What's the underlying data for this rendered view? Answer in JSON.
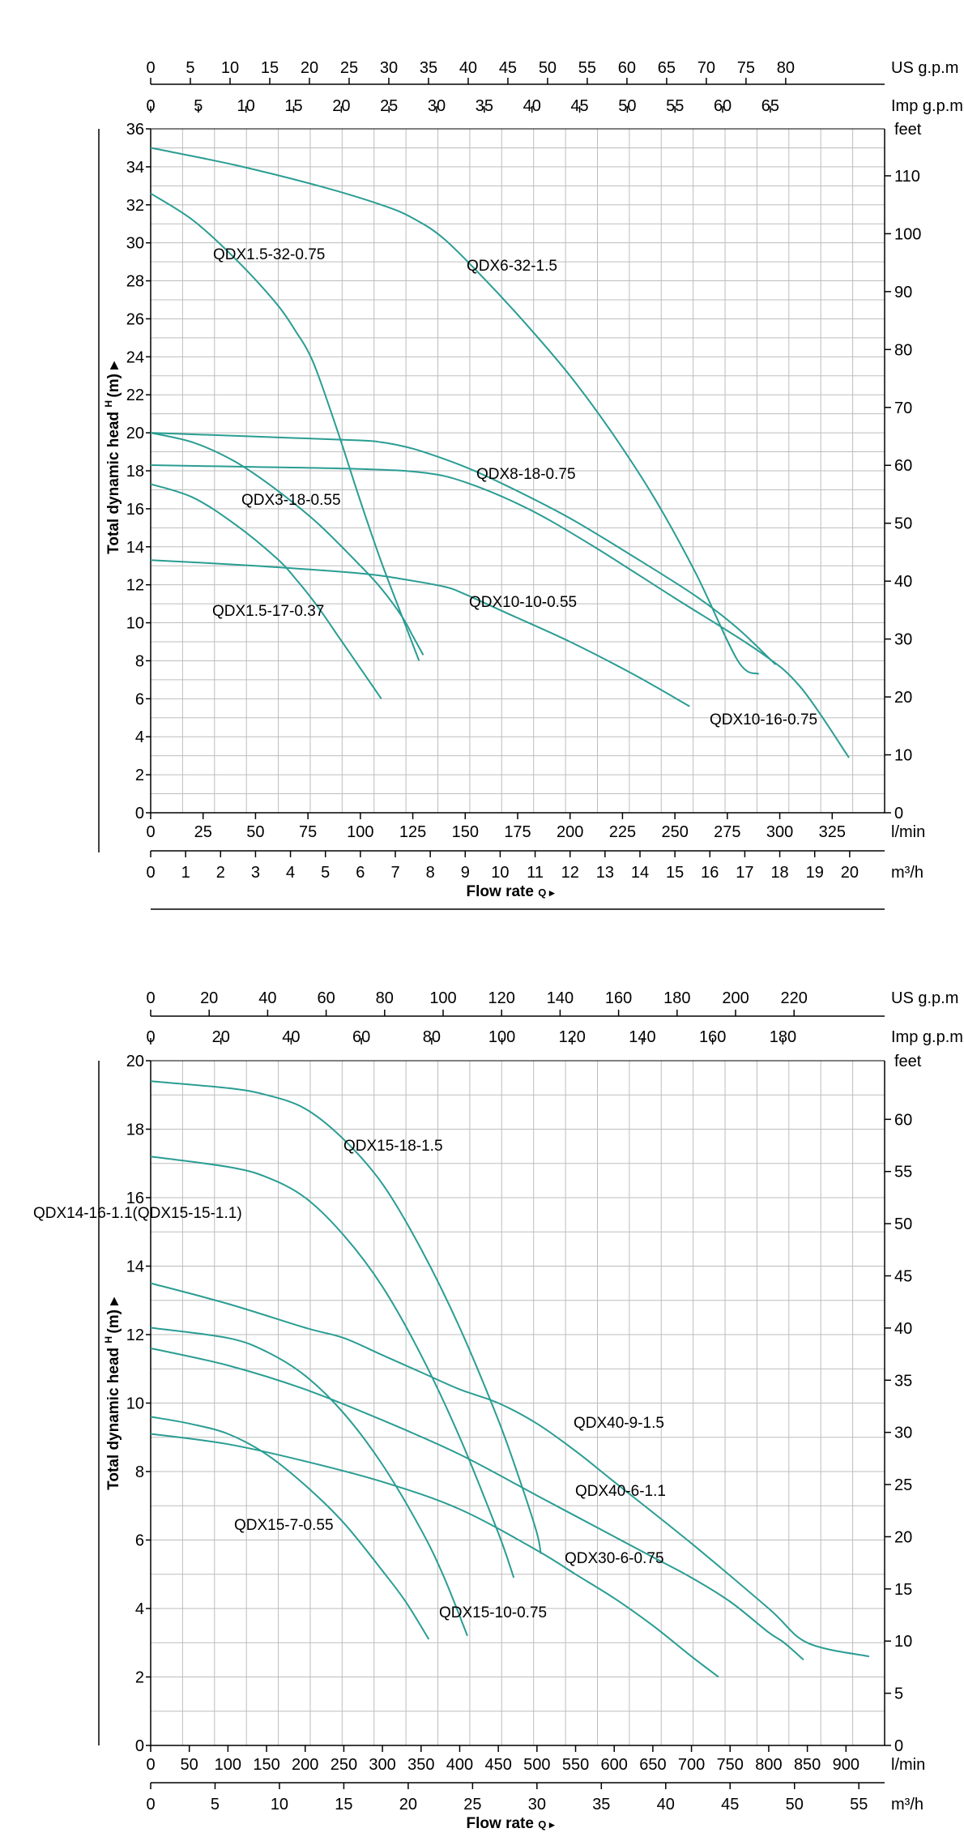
{
  "chart_data": [
    {
      "type": "line",
      "units": {
        "top1": "US g.p.m",
        "top2": "Imp g.p.m",
        "right": "feet",
        "bottom1": "l/min",
        "bottom2": "m³/h"
      },
      "ylabel": "Total dynamic head",
      "ylabel_sub": "H",
      "ylabel_unit": "(m)",
      "xlabel": "Flow rate",
      "xlabel_sub": "Q",
      "xlim": [
        0,
        350
      ],
      "ylim": [
        0,
        36
      ],
      "grid": true,
      "ticks": {
        "left": [
          "0",
          "2",
          "4",
          "6",
          "8",
          "10",
          "12",
          "14",
          "16",
          "18",
          "20",
          "22",
          "24",
          "26",
          "28",
          "30",
          "32",
          "34",
          "36"
        ],
        "right": [
          "0",
          "10",
          "20",
          "30",
          "40",
          "50",
          "60",
          "70",
          "80",
          "90",
          "100",
          "110"
        ],
        "bottom_lmin": [
          "0",
          "25",
          "50",
          "75",
          "100",
          "125",
          "150",
          "175",
          "200",
          "225",
          "250",
          "275",
          "300",
          "325"
        ],
        "bottom_m3h": [
          "0",
          "1",
          "2",
          "3",
          "4",
          "5",
          "6",
          "7",
          "8",
          "9",
          "10",
          "11",
          "12",
          "13",
          "14",
          "15",
          "16",
          "17",
          "18",
          "19",
          "20"
        ],
        "top_usgpm": [
          "0",
          "5",
          "10",
          "15",
          "20",
          "25",
          "30",
          "35",
          "40",
          "45",
          "50",
          "55",
          "60",
          "65",
          "70",
          "75",
          "80"
        ],
        "top_impgpm": [
          "0",
          "5",
          "10",
          "15",
          "20",
          "25",
          "30",
          "35",
          "40",
          "45",
          "50",
          "55",
          "60",
          "65"
        ]
      },
      "series": [
        {
          "name": "QDX1.5-32-0.75",
          "x": [
            0,
            20,
            40,
            60,
            70,
            75,
            80,
            90,
            100,
            110,
            120,
            128
          ],
          "y": [
            32.6,
            31.2,
            29.2,
            26.8,
            25.2,
            24.3,
            23.0,
            19.8,
            16.4,
            13.2,
            10.3,
            8.0
          ]
        },
        {
          "name": "QDX6-32-1.5",
          "x": [
            0,
            40,
            80,
            110,
            125,
            140,
            160,
            180,
            200,
            220,
            240,
            260,
            280,
            290
          ],
          "y": [
            35,
            34.1,
            33.0,
            32.0,
            31.3,
            30.2,
            28.0,
            25.6,
            23.0,
            20.0,
            16.6,
            12.6,
            8.0,
            7.3
          ]
        },
        {
          "name": "QDX8-18-0.75",
          "x": [
            0,
            50,
            100,
            110,
            120,
            130,
            150,
            170,
            200,
            230,
            260,
            280,
            298
          ],
          "y": [
            20.0,
            19.8,
            19.6,
            19.5,
            19.3,
            19.0,
            18.2,
            17.2,
            15.5,
            13.5,
            11.4,
            9.7,
            7.8
          ]
        },
        {
          "name": "QDX3-18-0.55",
          "x": [
            0,
            20,
            40,
            60,
            80,
            100,
            110,
            120,
            125,
            130
          ],
          "y": [
            20.0,
            19.5,
            18.5,
            17.0,
            15.2,
            13.0,
            11.8,
            10.3,
            9.3,
            8.3
          ]
        },
        {
          "name": "QDX1.5-17-0.37",
          "x": [
            0,
            20,
            40,
            60,
            70,
            80,
            90,
            100,
            110
          ],
          "y": [
            17.3,
            16.6,
            15.2,
            13.4,
            12.2,
            10.8,
            9.2,
            7.6,
            6.0
          ]
        },
        {
          "name": "QDX10-10-0.55",
          "x": [
            0,
            50,
            100,
            120,
            140,
            150,
            170,
            200,
            230,
            257
          ],
          "y": [
            13.3,
            13.0,
            12.6,
            12.3,
            11.9,
            11.5,
            10.5,
            9.0,
            7.3,
            5.6
          ]
        },
        {
          "name": "QDX10-16-0.75",
          "x": [
            0,
            50,
            100,
            130,
            150,
            180,
            210,
            250,
            290,
            310,
            333
          ],
          "y": [
            18.3,
            18.2,
            18.1,
            17.9,
            17.4,
            16.0,
            14.1,
            11.3,
            8.5,
            6.6,
            2.9
          ]
        }
      ]
    },
    {
      "type": "line",
      "units": {
        "top1": "US g.p.m",
        "top2": "Imp g.p.m",
        "right": "feet",
        "bottom1": "l/min",
        "bottom2": "m³/h"
      },
      "ylabel": "Total dynamic head",
      "ylabel_sub": "H",
      "ylabel_unit": "(m)",
      "xlabel": "Flow rate",
      "xlabel_sub": "Q",
      "xlim": [
        0,
        950
      ],
      "ylim": [
        0,
        20
      ],
      "grid": true,
      "ticks": {
        "left": [
          "0",
          "2",
          "4",
          "6",
          "8",
          "10",
          "12",
          "14",
          "16",
          "18",
          "20"
        ],
        "right": [
          "0",
          "5",
          "10",
          "15",
          "20",
          "25",
          "30",
          "35",
          "40",
          "45",
          "50",
          "55",
          "60"
        ],
        "bottom_lmin": [
          "0",
          "50",
          "100",
          "150",
          "200",
          "250",
          "300",
          "350",
          "400",
          "450",
          "500",
          "550",
          "600",
          "650",
          "700",
          "750",
          "800",
          "850",
          "900"
        ],
        "bottom_m3h": [
          "0",
          "5",
          "10",
          "15",
          "20",
          "25",
          "30",
          "35",
          "40",
          "45",
          "50",
          "55"
        ],
        "top_usgpm": [
          "0",
          "20",
          "40",
          "60",
          "80",
          "100",
          "120",
          "140",
          "160",
          "180",
          "200",
          "220"
        ],
        "top_impgpm": [
          "0",
          "20",
          "40",
          "60",
          "80",
          "100",
          "120",
          "140",
          "160",
          "180"
        ]
      },
      "series": [
        {
          "name": "QDX15-18-1.5",
          "x": [
            0,
            100,
            150,
            200,
            250,
            300,
            350,
            400,
            450,
            480,
            500,
            505
          ],
          "y": [
            19.4,
            19.2,
            19.0,
            18.6,
            17.7,
            16.4,
            14.5,
            12.2,
            9.5,
            7.6,
            6.2,
            5.6
          ]
        },
        {
          "name": "QDX14-16-1.1(QDX15-15-1.1)",
          "x": [
            0,
            100,
            150,
            200,
            250,
            300,
            350,
            400,
            450,
            470
          ],
          "y": [
            17.2,
            16.9,
            16.6,
            16.0,
            14.9,
            13.4,
            11.4,
            9.0,
            6.2,
            4.9
          ]
        },
        {
          "name": "QDX40-9-1.5",
          "x": [
            0,
            100,
            200,
            250,
            300,
            350,
            400,
            450,
            500,
            550,
            600,
            700,
            800,
            850,
            930
          ],
          "y": [
            13.5,
            12.9,
            12.2,
            11.9,
            11.4,
            10.9,
            10.4,
            10.0,
            9.4,
            8.6,
            7.7,
            5.9,
            4.0,
            3.0,
            2.6
          ]
        },
        {
          "name": "QDX40-6-1.1",
          "x": [
            0,
            100,
            200,
            300,
            400,
            500,
            600,
            650,
            700,
            750,
            800,
            820,
            845
          ],
          "y": [
            11.6,
            11.1,
            10.4,
            9.5,
            8.5,
            7.3,
            6.1,
            5.5,
            4.9,
            4.2,
            3.3,
            3.0,
            2.5
          ]
        },
        {
          "name": "QDX30-6-0.75",
          "x": [
            0,
            100,
            200,
            300,
            400,
            500,
            550,
            600,
            650,
            700,
            735
          ],
          "y": [
            9.1,
            8.8,
            8.3,
            7.7,
            6.9,
            5.7,
            5.0,
            4.3,
            3.5,
            2.6,
            2.0
          ]
        },
        {
          "name": "QDX15-10-0.75",
          "x": [
            0,
            100,
            150,
            200,
            250,
            300,
            350,
            380,
            410
          ],
          "y": [
            12.2,
            11.9,
            11.5,
            10.8,
            9.7,
            8.2,
            6.3,
            4.9,
            3.2
          ]
        },
        {
          "name": "QDX15-7-0.55",
          "x": [
            0,
            50,
            100,
            150,
            200,
            250,
            300,
            330,
            360
          ],
          "y": [
            9.6,
            9.4,
            9.1,
            8.5,
            7.6,
            6.5,
            5.1,
            4.2,
            3.1
          ]
        }
      ]
    }
  ]
}
